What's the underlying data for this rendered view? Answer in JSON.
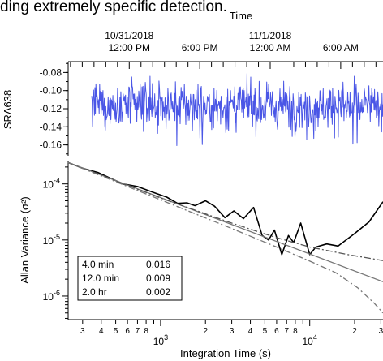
{
  "caption": "ding extremely specific detection.",
  "chart_data": [
    {
      "id": "time-series",
      "type": "line",
      "xlabel": "Time",
      "ylabel": "SRΔ638",
      "x_ticks_major": [
        {
          "l1": "10/31/2018",
          "l2": "12:00 PM",
          "hour": 0
        },
        {
          "l1": "",
          "l2": "6:00 PM",
          "hour": 6
        },
        {
          "l1": "11/1/2018",
          "l2": "12:00 AM",
          "hour": 12
        },
        {
          "l1": "",
          "l2": "6:00 AM",
          "hour": 18
        }
      ],
      "xlim_hours": [
        -5.2,
        21.6
      ],
      "yticks": [
        "-0.08",
        "-0.10",
        "-0.12",
        "-0.14",
        "-0.16"
      ],
      "ytick_values": [
        -0.08,
        -0.1,
        -0.12,
        -0.14,
        -0.16
      ],
      "ylim": [
        -0.172,
        -0.068
      ],
      "series": [
        {
          "color": "#4a56e6",
          "mean": -0.117,
          "sd": 0.013,
          "min": -0.168,
          "max": -0.077,
          "n": 620
        }
      ]
    },
    {
      "id": "allan-variance",
      "type": "line",
      "xscale": "log",
      "yscale": "log",
      "xlabel": "Integration Time (s)",
      "ylabel": "Allan Variance (σ²)",
      "xlim": [
        240,
        31000
      ],
      "ylim": [
        3.8e-07,
        0.00026
      ],
      "ytick_labels": [
        {
          "v": 0.0001,
          "base": "10",
          "exp": "-4"
        },
        {
          "v": 1e-05,
          "base": "10",
          "exp": "-5"
        },
        {
          "v": 1e-06,
          "base": "10",
          "exp": "-6"
        }
      ],
      "xtick_labels": [
        {
          "v": 1000,
          "base": "10",
          "exp": "3"
        },
        {
          "v": 10000,
          "base": "10",
          "exp": "4"
        }
      ],
      "xminor_labels": [
        {
          "v": 300,
          "t": "3"
        },
        {
          "v": 400,
          "t": "4"
        },
        {
          "v": 500,
          "t": "5"
        },
        {
          "v": 600,
          "t": "6"
        },
        {
          "v": 700,
          "t": "7"
        },
        {
          "v": 800,
          "t": "8"
        },
        {
          "v": 2000,
          "t": "2"
        },
        {
          "v": 3000,
          "t": "3"
        },
        {
          "v": 4000,
          "t": "4"
        },
        {
          "v": 5000,
          "t": "5"
        },
        {
          "v": 6000,
          "t": "6"
        },
        {
          "v": 7000,
          "t": "7"
        },
        {
          "v": 8000,
          "t": "8"
        },
        {
          "v": 20000,
          "t": "2"
        },
        {
          "v": 30000,
          "t": "3"
        }
      ],
      "series": [
        {
          "style": "measured",
          "color": "#000000",
          "points": [
            [
              240,
              0.00024
            ],
            [
              300,
              0.00019
            ],
            [
              380,
              0.00016
            ],
            [
              450,
              0.00013
            ],
            [
              560,
              0.0001
            ],
            [
              700,
              9e-05
            ],
            [
              900,
              7e-05
            ],
            [
              1100,
              5.8e-05
            ],
            [
              1300,
              4.5e-05
            ],
            [
              1500,
              4.6e-05
            ],
            [
              1700,
              4.1e-05
            ],
            [
              2000,
              5e-05
            ],
            [
              2300,
              4e-05
            ],
            [
              2700,
              2.5e-05
            ],
            [
              3100,
              3.3e-05
            ],
            [
              3600,
              2.4e-05
            ],
            [
              4200,
              3.8e-05
            ],
            [
              4800,
              1.2e-05
            ],
            [
              5300,
              1e-05
            ],
            [
              5800,
              1.5e-05
            ],
            [
              6500,
              5.5e-06
            ],
            [
              7200,
              1.2e-05
            ],
            [
              7800,
              9e-06
            ],
            [
              8700,
              2e-05
            ],
            [
              10000,
              5.5e-06
            ],
            [
              11000,
              7.5e-06
            ],
            [
              13000,
              8.5e-06
            ],
            [
              15500,
              7.8e-06
            ],
            [
              20000,
              1.3e-05
            ],
            [
              25000,
              2.1e-05
            ],
            [
              31000,
              4.8e-05
            ]
          ]
        },
        {
          "style": "white-noise fit",
          "color": "#777777",
          "points": [
            [
              240,
              0.00024
            ],
            [
              31000,
              1.8e-06
            ]
          ]
        },
        {
          "style": "noise-model dash-dot 1",
          "color": "#555555",
          "points": [
            [
              240,
              0.00024
            ],
            [
              1000,
              5.6e-05
            ],
            [
              3000,
              2e-05
            ],
            [
              6000,
              1.1e-05
            ],
            [
              10000,
              7.5e-06
            ],
            [
              18000,
              5.5e-06
            ],
            [
              31000,
              4.3e-06
            ]
          ]
        },
        {
          "style": "noise-model dash-dot 2",
          "color": "#777777",
          "points": [
            [
              240,
              0.00024
            ],
            [
              1000,
              5.2e-05
            ],
            [
              3000,
              1.6e-05
            ],
            [
              6000,
              7.5e-06
            ],
            [
              10000,
              4.2e-06
            ],
            [
              15000,
              2.6e-06
            ],
            [
              21000,
              1.4e-06
            ],
            [
              27000,
              7.5e-07
            ],
            [
              31000,
              5e-07
            ]
          ]
        }
      ],
      "legend": {
        "position": "bottom-left",
        "rows": [
          {
            "label": "4.0 min",
            "value": "0.016"
          },
          {
            "label": "12.0 min",
            "value": "0.009"
          },
          {
            "label": "2.0 hr",
            "value": "0.002"
          }
        ]
      }
    }
  ]
}
